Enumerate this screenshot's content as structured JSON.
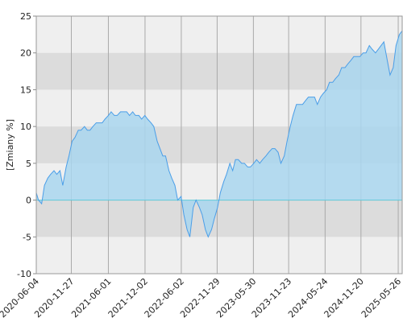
{
  "chart_data": {
    "type": "area",
    "y_label": "[Zmiany %]",
    "x": [
      "2020-06-04",
      "2020-06-15",
      "2020-07-01",
      "2020-07-15",
      "2020-08-01",
      "2020-08-15",
      "2020-09-01",
      "2020-09-15",
      "2020-10-01",
      "2020-10-15",
      "2020-11-01",
      "2020-11-15",
      "2020-12-01",
      "2020-12-15",
      "2021-01-01",
      "2021-01-15",
      "2021-02-01",
      "2021-02-15",
      "2021-03-01",
      "2021-03-15",
      "2021-04-01",
      "2021-04-15",
      "2021-05-01",
      "2021-05-15",
      "2021-06-01",
      "2021-06-15",
      "2021-07-01",
      "2021-07-15",
      "2021-08-01",
      "2021-08-15",
      "2021-09-01",
      "2021-09-15",
      "2021-10-01",
      "2021-10-15",
      "2021-11-01",
      "2021-11-15",
      "2021-12-01",
      "2021-12-15",
      "2022-01-01",
      "2022-01-15",
      "2022-02-01",
      "2022-02-15",
      "2022-03-01",
      "2022-03-15",
      "2022-04-01",
      "2022-04-15",
      "2022-05-01",
      "2022-05-15",
      "2022-06-01",
      "2022-06-15",
      "2022-07-01",
      "2022-07-15",
      "2022-08-01",
      "2022-08-15",
      "2022-09-01",
      "2022-09-15",
      "2022-10-01",
      "2022-10-15",
      "2022-11-01",
      "2022-11-15",
      "2022-12-01",
      "2022-12-15",
      "2023-01-01",
      "2023-01-15",
      "2023-02-01",
      "2023-02-15",
      "2023-03-01",
      "2023-03-15",
      "2023-04-01",
      "2023-04-15",
      "2023-05-01",
      "2023-05-15",
      "2023-06-01",
      "2023-06-15",
      "2023-07-01",
      "2023-07-15",
      "2023-08-01",
      "2023-08-15",
      "2023-09-01",
      "2023-09-15",
      "2023-10-01",
      "2023-10-15",
      "2023-11-01",
      "2023-11-15",
      "2023-12-01",
      "2023-12-15",
      "2024-01-01",
      "2024-01-15",
      "2024-02-01",
      "2024-02-15",
      "2024-03-01",
      "2024-03-15",
      "2024-04-01",
      "2024-04-15",
      "2024-05-01",
      "2024-05-15",
      "2024-06-01",
      "2024-06-15",
      "2024-07-01",
      "2024-07-15",
      "2024-08-01",
      "2024-08-15",
      "2024-09-01",
      "2024-09-15",
      "2024-10-01",
      "2024-10-15",
      "2024-11-01",
      "2024-11-15",
      "2024-12-01",
      "2024-12-15",
      "2025-01-01",
      "2025-01-15",
      "2025-02-01",
      "2025-02-15",
      "2025-03-01",
      "2025-03-15",
      "2025-04-01",
      "2025-04-15",
      "2025-05-01",
      "2025-05-15",
      "2025-06-01",
      "2025-06-15"
    ],
    "values": [
      1,
      0,
      -0.5,
      2,
      3,
      3.5,
      4,
      3.5,
      4,
      2,
      4.5,
      6,
      8,
      8.5,
      9.5,
      9.5,
      10,
      9.5,
      9.5,
      10,
      10.5,
      10.5,
      10.5,
      11,
      11.5,
      12,
      11.5,
      11.5,
      12,
      12,
      12,
      11.5,
      12,
      11.5,
      11.5,
      11,
      11.5,
      11,
      10.5,
      10,
      8,
      7,
      6,
      6,
      4,
      3,
      2,
      0,
      0.5,
      -2,
      -4,
      -5,
      -1,
      0,
      -1,
      -2,
      -4,
      -5,
      -4,
      -2.5,
      -1,
      1,
      2.5,
      3.5,
      5,
      4,
      5.5,
      5.5,
      5,
      5,
      4.5,
      4.5,
      5,
      5.5,
      5,
      5.5,
      6,
      6.5,
      7,
      7,
      6.5,
      5,
      6,
      8,
      10,
      11.5,
      13,
      13,
      13,
      13.5,
      14,
      14,
      14,
      13,
      14,
      14.5,
      15,
      16,
      16,
      16.5,
      17,
      18,
      18,
      18.5,
      19,
      19.5,
      19.5,
      19.5,
      20,
      20,
      21,
      20.5,
      20,
      20.5,
      21,
      21.5,
      19,
      17,
      18,
      21,
      22.5,
      23
    ],
    "line_color": "#4a9ee8",
    "fill_color": "#a9d6ee",
    "xlim": [
      "2020-06-04",
      "2025-06-15"
    ],
    "xticks": [
      "2020-06-04",
      "2020-11-27",
      "2021-06-01",
      "2021-12-02",
      "2022-06-02",
      "2022-11-29",
      "2023-05-30",
      "2023-11-23",
      "2024-05-24",
      "2024-11-20",
      "2025-05-26"
    ],
    "ylim": [
      -10,
      25
    ],
    "yticks": [
      -10,
      -5,
      0,
      5,
      10,
      15,
      20,
      25
    ],
    "grid": true
  }
}
